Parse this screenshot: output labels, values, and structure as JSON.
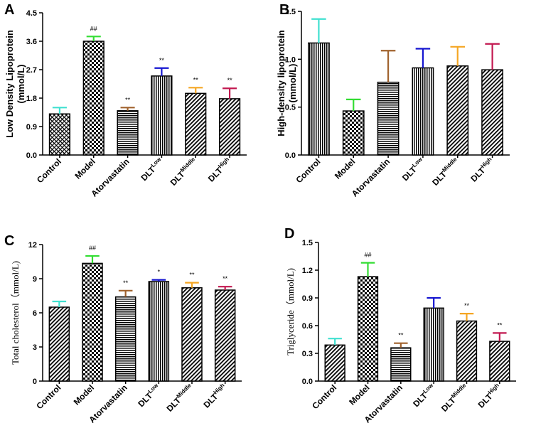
{
  "chart_data": [
    {
      "panel": "A",
      "type": "bar",
      "title": "",
      "ylabel": "Low Density Lipoprotein\n(mmol/L)",
      "ylim": [
        0,
        4.5
      ],
      "yticks": [
        "0.0",
        "0.9",
        "1.8",
        "2.7",
        "3.6",
        "4.5"
      ],
      "categories": [
        {
          "base": "Control",
          "sup": ""
        },
        {
          "base": "Model",
          "sup": ""
        },
        {
          "base": "Atorvastatin",
          "sup": ""
        },
        {
          "base": "DLT",
          "sup": "Low"
        },
        {
          "base": "DLT",
          "sup": "Middle"
        },
        {
          "base": "DLT",
          "sup": "High"
        }
      ],
      "values": [
        1.3,
        3.6,
        1.4,
        2.5,
        1.95,
        1.78
      ],
      "errors": [
        0.2,
        0.15,
        0.1,
        0.25,
        0.18,
        0.33
      ],
      "annotations": [
        "",
        "##",
        "**",
        "**",
        "**",
        "**"
      ],
      "error_colors": [
        "#40E0D0",
        "#33DD33",
        "#A0622D",
        "#1515D0",
        "#F5A623",
        "#C21850"
      ],
      "patterns": [
        "crosshatch",
        "checker",
        "hlines",
        "vlines",
        "diag",
        "diag"
      ]
    },
    {
      "panel": "B",
      "type": "bar",
      "title": "",
      "ylabel": "High-density lipoprotein\n(mmol/L)",
      "ylim": [
        0,
        1.5
      ],
      "yticks": [
        "0.0",
        "0.5",
        "1.0",
        "1.5"
      ],
      "categories": [
        {
          "base": "Control",
          "sup": ""
        },
        {
          "base": "Model",
          "sup": ""
        },
        {
          "base": "Atorvastatin",
          "sup": ""
        },
        {
          "base": "DLT",
          "sup": "Low"
        },
        {
          "base": "DLT",
          "sup": "Middle"
        },
        {
          "base": "DLT",
          "sup": "High"
        }
      ],
      "values": [
        1.17,
        0.46,
        0.76,
        0.91,
        0.93,
        0.89
      ],
      "errors": [
        0.25,
        0.12,
        0.33,
        0.2,
        0.2,
        0.27
      ],
      "annotations": [
        "",
        "",
        "",
        "",
        "",
        ""
      ],
      "error_colors": [
        "#40E0D0",
        "#33DD33",
        "#A0622D",
        "#1515D0",
        "#F5A623",
        "#C21850"
      ],
      "patterns": [
        "vlines",
        "checker",
        "hlines",
        "vlines",
        "diag",
        "diag"
      ]
    },
    {
      "panel": "C",
      "type": "bar",
      "title": "",
      "ylabel": "Total cholesterol（mmol/L)",
      "ylim": [
        0,
        12
      ],
      "yticks": [
        "0",
        "3",
        "6",
        "9",
        "12"
      ],
      "categories": [
        {
          "base": "Control",
          "sup": ""
        },
        {
          "base": "Model",
          "sup": ""
        },
        {
          "base": "Atorvastatin",
          "sup": ""
        },
        {
          "base": "DLT",
          "sup": "Low"
        },
        {
          "base": "DLT",
          "sup": "Middle"
        },
        {
          "base": "DLT",
          "sup": "High"
        }
      ],
      "values": [
        6.5,
        10.35,
        7.4,
        8.75,
        8.2,
        8.0
      ],
      "errors": [
        0.5,
        0.65,
        0.55,
        0.15,
        0.45,
        0.3
      ],
      "annotations": [
        "",
        "##",
        "**",
        "*",
        "**",
        "**"
      ],
      "error_colors": [
        "#40E0D0",
        "#33DD33",
        "#A0622D",
        "#1515D0",
        "#F5A623",
        "#C21850"
      ],
      "patterns": [
        "diag",
        "checker",
        "hlines",
        "vlines",
        "diag",
        "diag"
      ]
    },
    {
      "panel": "D",
      "type": "bar",
      "title": "",
      "ylabel": "Triglyceride（mmol/L)",
      "ylim": [
        0,
        1.5
      ],
      "yticks": [
        "0.0",
        "0.3",
        "0.6",
        "0.9",
        "1.2",
        "1.5"
      ],
      "categories": [
        {
          "base": "Control",
          "sup": ""
        },
        {
          "base": "Model",
          "sup": ""
        },
        {
          "base": "Atorvastatin",
          "sup": ""
        },
        {
          "base": "DLT",
          "sup": "Low"
        },
        {
          "base": "DLT",
          "sup": "Middle"
        },
        {
          "base": "DLT",
          "sup": "High"
        }
      ],
      "values": [
        0.39,
        1.13,
        0.36,
        0.79,
        0.65,
        0.43
      ],
      "errors": [
        0.07,
        0.15,
        0.05,
        0.11,
        0.08,
        0.09
      ],
      "annotations": [
        "",
        "##",
        "**",
        "",
        "**",
        "**"
      ],
      "error_colors": [
        "#40E0D0",
        "#33DD33",
        "#A0622D",
        "#1515D0",
        "#F5A623",
        "#C21850"
      ],
      "patterns": [
        "diag",
        "checker",
        "hlines",
        "vlines",
        "diag",
        "diag"
      ]
    }
  ]
}
